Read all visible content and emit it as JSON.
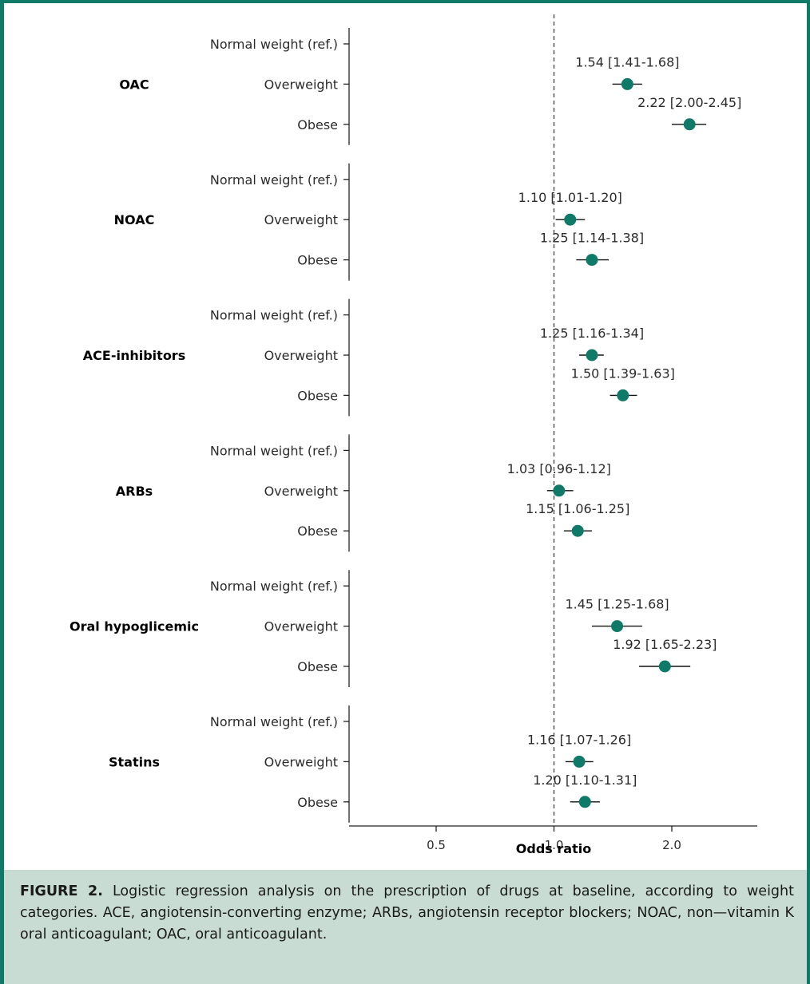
{
  "chart_data": {
    "type": "forest",
    "xlabel": "Odds ratio",
    "x_scale": "log",
    "xlim": [
      0.35,
      2.9
    ],
    "x_ticks": [
      {
        "value": 0.5,
        "label": "0.5"
      },
      {
        "value": 1.0,
        "label": "1.0"
      },
      {
        "value": 2.0,
        "label": "2.0"
      }
    ],
    "reference_line": 1.0,
    "marker_color": "#0f7a68",
    "groups": [
      {
        "name": "OAC",
        "rows": [
          {
            "label": "Normal weight (ref.)",
            "or": null,
            "ci": null,
            "text": ""
          },
          {
            "label": "Overweight",
            "or": 1.54,
            "ci": [
              1.41,
              1.68
            ],
            "text": "1.54 [1.41-1.68]"
          },
          {
            "label": "Obese",
            "or": 2.22,
            "ci": [
              2.0,
              2.45
            ],
            "text": "2.22 [2.00-2.45]"
          }
        ]
      },
      {
        "name": "NOAC",
        "rows": [
          {
            "label": "Normal weight (ref.)",
            "or": null,
            "ci": null,
            "text": ""
          },
          {
            "label": "Overweight",
            "or": 1.1,
            "ci": [
              1.01,
              1.2
            ],
            "text": "1.10 [1.01-1.20]"
          },
          {
            "label": "Obese",
            "or": 1.25,
            "ci": [
              1.14,
              1.38
            ],
            "text": "1.25 [1.14-1.38]"
          }
        ]
      },
      {
        "name": "ACE-inhibitors",
        "rows": [
          {
            "label": "Normal weight (ref.)",
            "or": null,
            "ci": null,
            "text": ""
          },
          {
            "label": "Overweight",
            "or": 1.25,
            "ci": [
              1.16,
              1.34
            ],
            "text": "1.25 [1.16-1.34]"
          },
          {
            "label": "Obese",
            "or": 1.5,
            "ci": [
              1.39,
              1.63
            ],
            "text": "1.50 [1.39-1.63]"
          }
        ]
      },
      {
        "name": "ARBs",
        "rows": [
          {
            "label": "Normal weight (ref.)",
            "or": null,
            "ci": null,
            "text": ""
          },
          {
            "label": "Overweight",
            "or": 1.03,
            "ci": [
              0.96,
              1.12
            ],
            "text": "1.03 [0.96-1.12]"
          },
          {
            "label": "Obese",
            "or": 1.15,
            "ci": [
              1.06,
              1.25
            ],
            "text": "1.15 [1.06-1.25]"
          }
        ]
      },
      {
        "name": "Oral hypoglicemic",
        "rows": [
          {
            "label": "Normal weight (ref.)",
            "or": null,
            "ci": null,
            "text": ""
          },
          {
            "label": "Overweight",
            "or": 1.45,
            "ci": [
              1.25,
              1.68
            ],
            "text": "1.45 [1.25-1.68]"
          },
          {
            "label": "Obese",
            "or": 1.92,
            "ci": [
              1.65,
              2.23
            ],
            "text": "1.92 [1.65-2.23]"
          }
        ]
      },
      {
        "name": "Statins",
        "rows": [
          {
            "label": "Normal weight (ref.)",
            "or": null,
            "ci": null,
            "text": ""
          },
          {
            "label": "Overweight",
            "or": 1.16,
            "ci": [
              1.07,
              1.26
            ],
            "text": "1.16 [1.07-1.26]"
          },
          {
            "label": "Obese",
            "or": 1.2,
            "ci": [
              1.1,
              1.31
            ],
            "text": "1.20 [1.10-1.31]"
          }
        ]
      }
    ]
  },
  "caption": {
    "label": "FIGURE 2.",
    "text": "Logistic regression analysis on the prescription of drugs at baseline, according to weight categories. ACE, angiotensin-converting enzyme; ARBs, angiotensin receptor blockers; NOAC, non—vitamin K oral anticoagulant; OAC, oral anticoagulant."
  }
}
